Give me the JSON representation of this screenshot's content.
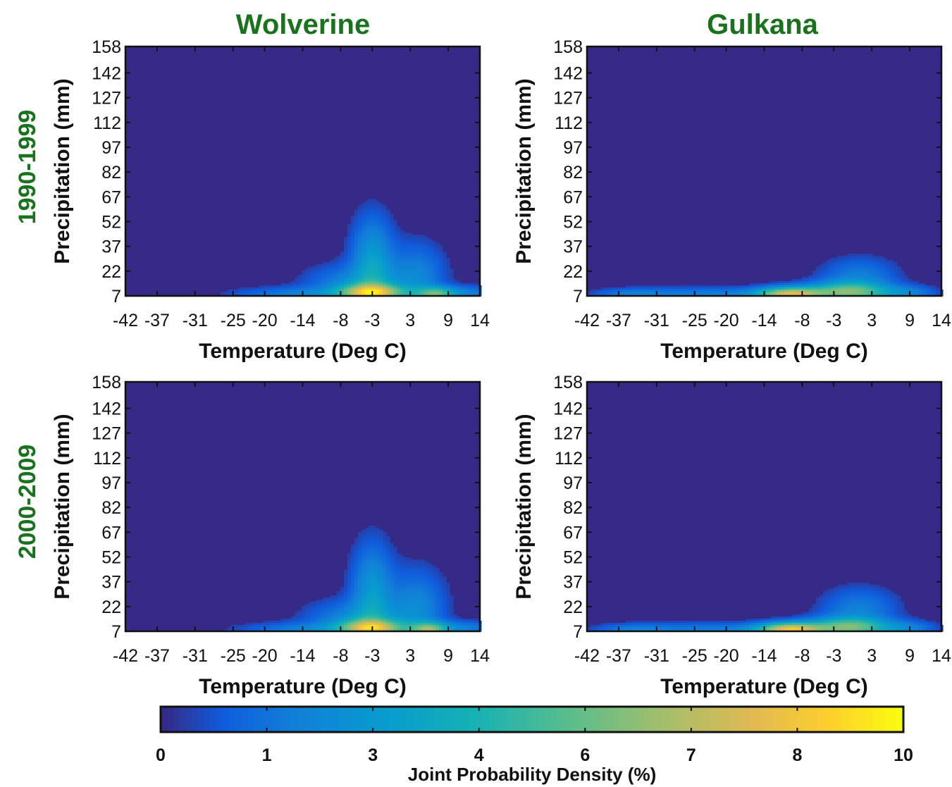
{
  "figure": {
    "column_titles": [
      "Wolverine",
      "Gulkana"
    ],
    "row_titles": [
      "1990-1999",
      "2000-2009"
    ],
    "colors": {
      "title_green": "#19731c",
      "background_density": "#352a87"
    }
  },
  "chart_data": {
    "type": "heatmap",
    "xlabel": "Temperature (Deg C)",
    "ylabel": "Precipitation (mm)",
    "xticks": [
      "-42",
      "-37",
      "-31",
      "-25",
      "-20",
      "-14",
      "-8",
      "-3",
      "3",
      "9",
      "14"
    ],
    "yticks": [
      "7",
      "22",
      "37",
      "52",
      "67",
      "82",
      "97",
      "112",
      "127",
      "142",
      "158"
    ],
    "xlim": [
      -42,
      14
    ],
    "ylim": [
      7,
      158
    ],
    "colormap": "parula",
    "colorbar": {
      "label": "Joint Probability Density (%)",
      "ticks": [
        "0",
        "1",
        "3",
        "4",
        "6",
        "7",
        "8",
        "10"
      ],
      "range": [
        0,
        10
      ]
    },
    "panels": [
      {
        "glacier": "Wolverine",
        "period": "1990-1999",
        "density": [
          {
            "t": -3,
            "p": 9,
            "sx": 3.5,
            "sy": 3.5,
            "v": 6.5
          },
          {
            "t": -3,
            "p": 28,
            "sx": 2.2,
            "sy": 18,
            "v": 3.0
          },
          {
            "t": -6,
            "p": 14,
            "sx": 5,
            "sy": 8,
            "v": 2.0
          },
          {
            "t": 4,
            "p": 18,
            "sx": 3,
            "sy": 14,
            "v": 2.0
          },
          {
            "t": 7,
            "p": 8,
            "sx": 2,
            "sy": 3,
            "v": 4.0
          },
          {
            "t": -15,
            "p": 8,
            "sx": 7,
            "sy": 3,
            "v": 1.6
          },
          {
            "t": 11,
            "p": 9,
            "sx": 4,
            "sy": 3,
            "v": 1.8
          }
        ]
      },
      {
        "glacier": "Gulkana",
        "period": "1990-1999",
        "density": [
          {
            "t": -10,
            "p": 8,
            "sx": 3.5,
            "sy": 3,
            "v": 7.0
          },
          {
            "t": 1,
            "p": 9,
            "sx": 4,
            "sy": 4,
            "v": 3.5
          },
          {
            "t": 1,
            "p": 18,
            "sx": 4,
            "sy": 8,
            "v": 1.8
          },
          {
            "t": -22,
            "p": 8,
            "sx": 9,
            "sy": 3,
            "v": 1.7
          },
          {
            "t": -35,
            "p": 8,
            "sx": 4,
            "sy": 2.5,
            "v": 1.3
          },
          {
            "t": -3,
            "p": 10,
            "sx": 4,
            "sy": 4,
            "v": 2.5
          },
          {
            "t": 9,
            "p": 9,
            "sx": 3,
            "sy": 3,
            "v": 1.6
          }
        ]
      },
      {
        "glacier": "Wolverine",
        "period": "2000-2009",
        "density": [
          {
            "t": -3,
            "p": 9,
            "sx": 3.5,
            "sy": 3.5,
            "v": 6.0
          },
          {
            "t": -3,
            "p": 30,
            "sx": 2.2,
            "sy": 20,
            "v": 2.8
          },
          {
            "t": -6,
            "p": 14,
            "sx": 5,
            "sy": 8,
            "v": 2.0
          },
          {
            "t": 4,
            "p": 20,
            "sx": 3,
            "sy": 16,
            "v": 2.2
          },
          {
            "t": 6,
            "p": 8,
            "sx": 2,
            "sy": 3,
            "v": 4.5
          },
          {
            "t": -14,
            "p": 8,
            "sx": 7,
            "sy": 3,
            "v": 1.6
          },
          {
            "t": 11,
            "p": 9,
            "sx": 4,
            "sy": 3,
            "v": 1.8
          }
        ]
      },
      {
        "glacier": "Gulkana",
        "period": "2000-2009",
        "density": [
          {
            "t": -10,
            "p": 8,
            "sx": 3.5,
            "sy": 3,
            "v": 7.5
          },
          {
            "t": 1,
            "p": 9,
            "sx": 4,
            "sy": 4,
            "v": 3.5
          },
          {
            "t": 1,
            "p": 20,
            "sx": 4,
            "sy": 9,
            "v": 1.8
          },
          {
            "t": -22,
            "p": 8,
            "sx": 9,
            "sy": 3,
            "v": 1.7
          },
          {
            "t": -35,
            "p": 8,
            "sx": 4,
            "sy": 2.5,
            "v": 1.3
          },
          {
            "t": -3,
            "p": 10,
            "sx": 4,
            "sy": 4,
            "v": 2.5
          },
          {
            "t": 9,
            "p": 9,
            "sx": 3,
            "sy": 3,
            "v": 1.6
          }
        ]
      }
    ]
  }
}
